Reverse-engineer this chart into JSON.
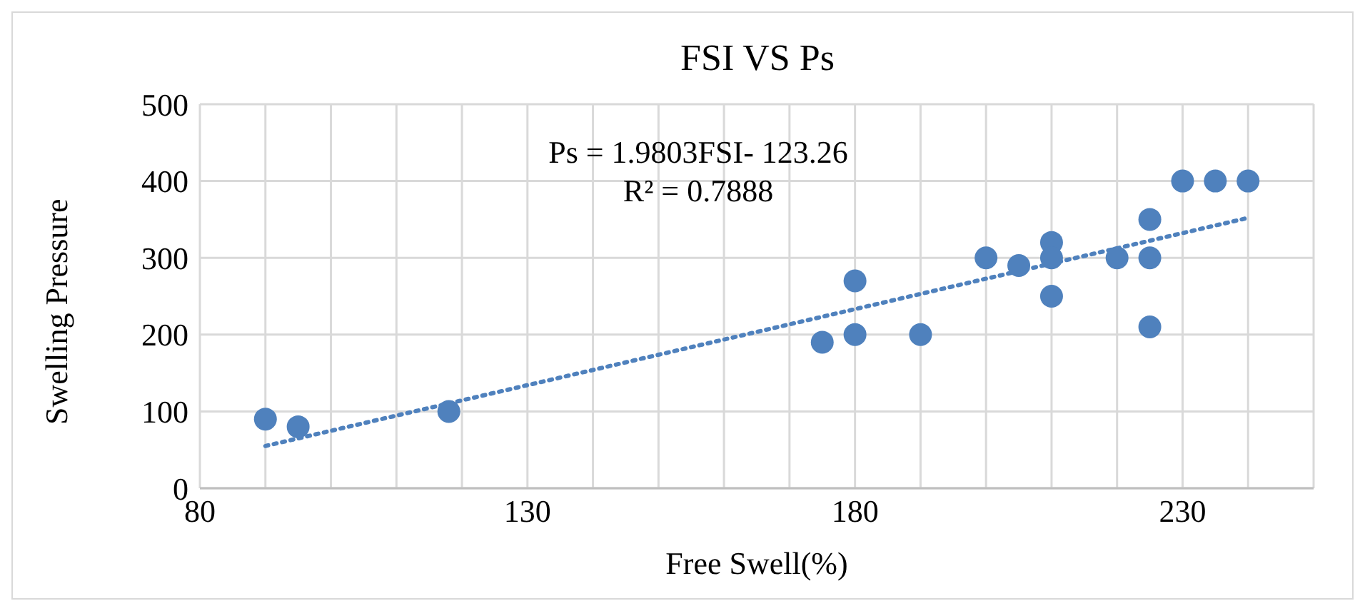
{
  "chart_data": {
    "type": "scatter",
    "title": "FSI VS Ps",
    "xlabel": "Free Swell(%)",
    "ylabel": "Swelling Pressure",
    "annotations": [
      "Ps = 1.9803FSI- 123.26",
      "R² = 0.7888"
    ],
    "xlim": [
      80,
      250
    ],
    "xticks": [
      80,
      {
        "value": 90,
        "label": null
      },
      {
        "value": 100,
        "label": null
      },
      {
        "value": 110,
        "label": null
      },
      {
        "value": 120,
        "label": null
      },
      130,
      {
        "value": 140,
        "label": null
      },
      {
        "value": 150,
        "label": null
      },
      {
        "value": 160,
        "label": null
      },
      {
        "value": 170,
        "label": null
      },
      180,
      {
        "value": 190,
        "label": null
      },
      {
        "value": 200,
        "label": null
      },
      {
        "value": 210,
        "label": null
      },
      {
        "value": 220,
        "label": null
      },
      230,
      {
        "value": 240,
        "label": null
      },
      {
        "value": 250,
        "label": null
      }
    ],
    "ylim": [
      0,
      500
    ],
    "yticks": [
      0,
      100,
      200,
      300,
      400,
      500
    ],
    "grid": true,
    "series": [
      {
        "color": "#4f81bd",
        "marker": "circle",
        "x": [
          90,
          95,
          118,
          175,
          180,
          180,
          190,
          200,
          205,
          210,
          210,
          210,
          220,
          225,
          225,
          225,
          230,
          235,
          240
        ],
        "values": [
          90,
          80,
          100,
          190,
          270,
          200,
          200,
          300,
          290,
          320,
          300,
          250,
          300,
          350,
          300,
          210,
          400,
          400,
          400
        ]
      },
      {
        "type": "line",
        "color": "#4f81bd",
        "marker": "none",
        "line_style": "dotted",
        "x": [
          90,
          240
        ],
        "values": [
          55,
          352
        ]
      }
    ]
  }
}
